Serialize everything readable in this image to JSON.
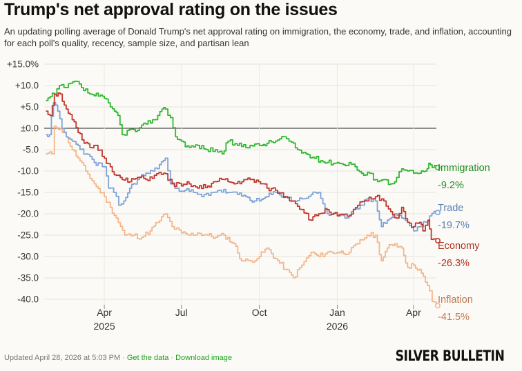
{
  "title": "Trump's net approval rating on the issues",
  "subtitle": "An updating polling average of Donald Trump's net approval rating on immigration, the economy, trade, and inflation, accounting for each poll's quality, recency, sample size, and partisan lean",
  "footer": {
    "updated": "Updated April 28, 2026 at 5:03 PM",
    "get_data": "Get the data",
    "download": "Download image",
    "brand": "SILVER BULLETIN"
  },
  "chart_data": {
    "type": "line",
    "ylim": [
      -42,
      15
    ],
    "yticks": [
      15,
      10,
      5,
      0,
      -5,
      -10,
      -15,
      -20,
      -25,
      -30,
      -35,
      -40
    ],
    "ytick_labels": [
      "+15.0%",
      "+10.0",
      "+5.0",
      "±0.0",
      "-5.0",
      "-10.0",
      "-15.0",
      "-20.0",
      "-25.0",
      "-30.0",
      "-35.0",
      "-40.0"
    ],
    "xlim": [
      "2025-01-20",
      "2026-04-28"
    ],
    "xticks": [
      {
        "date": "2025-04-01",
        "label": "Apr",
        "year": "2025"
      },
      {
        "date": "2025-07-01",
        "label": "Jul",
        "year": ""
      },
      {
        "date": "2025-10-01",
        "label": "Oct",
        "year": ""
      },
      {
        "date": "2026-01-01",
        "label": "Jan",
        "year": "2026"
      },
      {
        "date": "2026-04-01",
        "label": "Apr",
        "year": ""
      }
    ],
    "grid": true,
    "series": [
      {
        "name": "Immigration",
        "current": "-9.2%",
        "color": "#2db82d",
        "label_color": "#1e8e1e",
        "points": [
          [
            "2025-01-22",
            6.5
          ],
          [
            "2025-02-01",
            8
          ],
          [
            "2025-02-07",
            10
          ],
          [
            "2025-02-15",
            9.5
          ],
          [
            "2025-02-25",
            11
          ],
          [
            "2025-03-05",
            9.5
          ],
          [
            "2025-03-15",
            8
          ],
          [
            "2025-03-25",
            7.5
          ],
          [
            "2025-04-01",
            7
          ],
          [
            "2025-04-08",
            5
          ],
          [
            "2025-04-13",
            4
          ],
          [
            "2025-04-17",
            3
          ],
          [
            "2025-04-22",
            -1.5
          ],
          [
            "2025-04-28",
            -0.5
          ],
          [
            "2025-05-10",
            -0.5
          ],
          [
            "2025-05-20",
            1
          ],
          [
            "2025-05-28",
            2
          ],
          [
            "2025-06-03",
            3
          ],
          [
            "2025-06-08",
            4.5
          ],
          [
            "2025-06-12",
            4.5
          ],
          [
            "2025-06-18",
            2.5
          ],
          [
            "2025-06-24",
            -2
          ],
          [
            "2025-07-01",
            -3
          ],
          [
            "2025-07-10",
            -4.5
          ],
          [
            "2025-07-20",
            -4
          ],
          [
            "2025-07-30",
            -5
          ],
          [
            "2025-08-10",
            -5
          ],
          [
            "2025-08-18",
            -6
          ],
          [
            "2025-08-25",
            -3
          ],
          [
            "2025-09-05",
            -4
          ],
          [
            "2025-09-20",
            -4
          ],
          [
            "2025-10-01",
            -4
          ],
          [
            "2025-10-10",
            -3.5
          ],
          [
            "2025-10-20",
            -3
          ],
          [
            "2025-10-30",
            -2
          ],
          [
            "2025-11-05",
            -3
          ],
          [
            "2025-11-15",
            -5
          ],
          [
            "2025-11-25",
            -6
          ],
          [
            "2025-12-05",
            -7
          ],
          [
            "2025-12-20",
            -8
          ],
          [
            "2026-01-01",
            -8
          ],
          [
            "2026-01-08",
            -8.5
          ],
          [
            "2026-01-15",
            -8
          ],
          [
            "2026-01-22",
            -9
          ],
          [
            "2026-02-01",
            -11
          ],
          [
            "2026-02-08",
            -10.5
          ],
          [
            "2026-02-15",
            -12
          ],
          [
            "2026-02-25",
            -12
          ],
          [
            "2026-03-05",
            -13
          ],
          [
            "2026-03-12",
            -11.5
          ],
          [
            "2026-03-18",
            -9.5
          ],
          [
            "2026-03-25",
            -10
          ],
          [
            "2026-04-01",
            -10.5
          ],
          [
            "2026-04-08",
            -10.5
          ],
          [
            "2026-04-15",
            -10
          ],
          [
            "2026-04-19",
            -8.2
          ],
          [
            "2026-04-23",
            -9.2
          ],
          [
            "2026-04-28",
            -9.2
          ]
        ]
      },
      {
        "name": "Trade",
        "current": "-19.7%",
        "color": "#7da2d8",
        "label_color": "#5a7fb8",
        "points": [
          [
            "2025-01-22",
            -1.5
          ],
          [
            "2025-01-26",
            -1.5
          ],
          [
            "2025-01-31",
            6
          ],
          [
            "2025-02-05",
            4
          ],
          [
            "2025-02-10",
            0
          ],
          [
            "2025-02-15",
            -2
          ],
          [
            "2025-02-22",
            -3
          ],
          [
            "2025-03-01",
            -4
          ],
          [
            "2025-03-10",
            -6
          ],
          [
            "2025-03-20",
            -8
          ],
          [
            "2025-04-01",
            -9
          ],
          [
            "2025-04-06",
            -14
          ],
          [
            "2025-04-12",
            -15
          ],
          [
            "2025-04-18",
            -18
          ],
          [
            "2025-04-24",
            -17
          ],
          [
            "2025-05-01",
            -14
          ],
          [
            "2025-05-10",
            -12
          ],
          [
            "2025-05-20",
            -10.5
          ],
          [
            "2025-05-28",
            -10
          ],
          [
            "2025-06-05",
            -8.5
          ],
          [
            "2025-06-12",
            -7
          ],
          [
            "2025-06-18",
            -13
          ],
          [
            "2025-06-26",
            -14
          ],
          [
            "2025-07-05",
            -14.5
          ],
          [
            "2025-07-15",
            -15
          ],
          [
            "2025-07-25",
            -16
          ],
          [
            "2025-08-05",
            -15
          ],
          [
            "2025-08-15",
            -14.5
          ],
          [
            "2025-08-25",
            -15
          ],
          [
            "2025-09-05",
            -15.5
          ],
          [
            "2025-09-15",
            -16
          ],
          [
            "2025-09-25",
            -17
          ],
          [
            "2025-10-01",
            -17
          ],
          [
            "2025-10-10",
            -16
          ],
          [
            "2025-10-20",
            -15
          ],
          [
            "2025-11-01",
            -16
          ],
          [
            "2025-11-10",
            -17
          ],
          [
            "2025-11-20",
            -16.5
          ],
          [
            "2025-12-01",
            -15.5
          ],
          [
            "2025-12-10",
            -15
          ],
          [
            "2025-12-20",
            -20
          ],
          [
            "2026-01-01",
            -20.5
          ],
          [
            "2026-01-10",
            -21
          ],
          [
            "2026-01-20",
            -19
          ],
          [
            "2026-01-28",
            -18
          ],
          [
            "2026-02-05",
            -16.5
          ],
          [
            "2026-02-15",
            -17
          ],
          [
            "2026-02-22",
            -23
          ],
          [
            "2026-03-01",
            -21.5
          ],
          [
            "2026-03-10",
            -20
          ],
          [
            "2026-03-18",
            -21
          ],
          [
            "2026-03-25",
            -22
          ],
          [
            "2026-04-01",
            -24
          ],
          [
            "2026-04-08",
            -23
          ],
          [
            "2026-04-15",
            -22
          ],
          [
            "2026-04-20",
            -20.5
          ],
          [
            "2026-04-28",
            -19.7
          ]
        ]
      },
      {
        "name": "Economy",
        "current": "-26.3%",
        "color": "#c0362c",
        "label_color": "#b0301f",
        "points": [
          [
            "2025-01-22",
            4
          ],
          [
            "2025-01-27",
            3
          ],
          [
            "2025-02-01",
            8
          ],
          [
            "2025-02-08",
            8
          ],
          [
            "2025-02-15",
            4.5
          ],
          [
            "2025-02-22",
            2
          ],
          [
            "2025-03-01",
            -1
          ],
          [
            "2025-03-08",
            -3.5
          ],
          [
            "2025-03-15",
            -4.5
          ],
          [
            "2025-03-22",
            -4
          ],
          [
            "2025-04-01",
            -7
          ],
          [
            "2025-04-08",
            -9
          ],
          [
            "2025-04-15",
            -11
          ],
          [
            "2025-04-22",
            -12
          ],
          [
            "2025-05-01",
            -12.5
          ],
          [
            "2025-05-10",
            -11.5
          ],
          [
            "2025-05-20",
            -12
          ],
          [
            "2025-05-30",
            -11
          ],
          [
            "2025-06-10",
            -10.5
          ],
          [
            "2025-06-20",
            -13
          ],
          [
            "2025-07-01",
            -13.5
          ],
          [
            "2025-07-10",
            -13
          ],
          [
            "2025-07-20",
            -14
          ],
          [
            "2025-08-01",
            -13.5
          ],
          [
            "2025-08-10",
            -12.5
          ],
          [
            "2025-08-20",
            -12
          ],
          [
            "2025-09-01",
            -13
          ],
          [
            "2025-09-15",
            -12
          ],
          [
            "2025-09-30",
            -12.5
          ],
          [
            "2025-10-10",
            -14
          ],
          [
            "2025-10-20",
            -14.5
          ],
          [
            "2025-11-01",
            -16
          ],
          [
            "2025-11-10",
            -17
          ],
          [
            "2025-11-20",
            -19
          ],
          [
            "2025-12-01",
            -21.5
          ],
          [
            "2025-12-10",
            -20
          ],
          [
            "2025-12-20",
            -19
          ],
          [
            "2026-01-01",
            -20.5
          ],
          [
            "2026-01-15",
            -20.5
          ],
          [
            "2026-01-25",
            -18
          ],
          [
            "2026-02-05",
            -17
          ],
          [
            "2026-02-15",
            -16
          ],
          [
            "2026-02-25",
            -17
          ],
          [
            "2026-03-05",
            -19.5
          ],
          [
            "2026-03-12",
            -21
          ],
          [
            "2026-03-18",
            -18.5
          ],
          [
            "2026-03-25",
            -22
          ],
          [
            "2026-04-01",
            -23
          ],
          [
            "2026-04-08",
            -22
          ],
          [
            "2026-04-12",
            -24
          ],
          [
            "2026-04-18",
            -21.5
          ],
          [
            "2026-04-22",
            -26
          ],
          [
            "2026-04-28",
            -26.3
          ]
        ]
      },
      {
        "name": "Inflation",
        "current": "-41.5%",
        "color": "#f5b58a",
        "label_color": "#c07a4e",
        "points": [
          [
            "2025-01-22",
            -6
          ],
          [
            "2025-01-29",
            -6
          ],
          [
            "2025-02-01",
            0.5
          ],
          [
            "2025-02-08",
            0
          ],
          [
            "2025-02-15",
            -2
          ],
          [
            "2025-02-22",
            -5
          ],
          [
            "2025-03-01",
            -7
          ],
          [
            "2025-03-10",
            -10
          ],
          [
            "2025-03-20",
            -13
          ],
          [
            "2025-04-01",
            -16
          ],
          [
            "2025-04-08",
            -18.5
          ],
          [
            "2025-04-15",
            -21
          ],
          [
            "2025-04-25",
            -25
          ],
          [
            "2025-05-05",
            -25
          ],
          [
            "2025-05-15",
            -25.5
          ],
          [
            "2025-05-25",
            -24
          ],
          [
            "2025-06-03",
            -22
          ],
          [
            "2025-06-12",
            -20
          ],
          [
            "2025-06-20",
            -23
          ],
          [
            "2025-07-01",
            -24.5
          ],
          [
            "2025-07-10",
            -25
          ],
          [
            "2025-07-20",
            -24.5
          ],
          [
            "2025-08-01",
            -25
          ],
          [
            "2025-08-10",
            -25.5
          ],
          [
            "2025-08-20",
            -25
          ],
          [
            "2025-09-01",
            -27
          ],
          [
            "2025-09-10",
            -31
          ],
          [
            "2025-09-20",
            -31
          ],
          [
            "2025-10-01",
            -30
          ],
          [
            "2025-10-10",
            -28
          ],
          [
            "2025-10-20",
            -30.5
          ],
          [
            "2025-11-01",
            -33
          ],
          [
            "2025-11-10",
            -35
          ],
          [
            "2025-11-20",
            -32
          ],
          [
            "2025-12-01",
            -29
          ],
          [
            "2025-12-10",
            -30
          ],
          [
            "2025-12-20",
            -29
          ],
          [
            "2026-01-01",
            -29
          ],
          [
            "2026-01-15",
            -29
          ],
          [
            "2026-01-25",
            -27
          ],
          [
            "2026-02-05",
            -25
          ],
          [
            "2026-02-15",
            -25
          ],
          [
            "2026-02-22",
            -31
          ],
          [
            "2026-03-01",
            -28
          ],
          [
            "2026-03-10",
            -27
          ],
          [
            "2026-03-18",
            -28
          ],
          [
            "2026-03-25",
            -32.5
          ],
          [
            "2026-04-01",
            -32
          ],
          [
            "2026-04-08",
            -33
          ],
          [
            "2026-04-15",
            -36
          ],
          [
            "2026-04-20",
            -38
          ],
          [
            "2026-04-23",
            -40.5
          ],
          [
            "2026-04-28",
            -41.5
          ]
        ]
      }
    ]
  }
}
